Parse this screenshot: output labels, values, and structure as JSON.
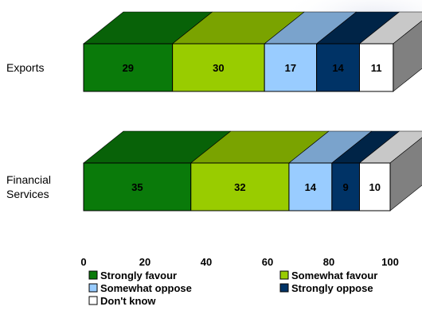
{
  "chart_data": {
    "type": "bar",
    "orientation": "horizontal",
    "stacked": true,
    "three_d": true,
    "categories": [
      "Exports",
      "Financial Services"
    ],
    "category_lines": [
      [
        "Exports"
      ],
      [
        "Financial",
        "Services"
      ]
    ],
    "series": [
      {
        "name": "Strongly favour",
        "values": [
          29,
          35
        ],
        "color": "#0a7a0a"
      },
      {
        "name": "Somewhat favour",
        "values": [
          30,
          32
        ],
        "color": "#99cc00"
      },
      {
        "name": "Somewhat oppose",
        "values": [
          17,
          14
        ],
        "color": "#99ccff"
      },
      {
        "name": "Strongly oppose",
        "values": [
          14,
          9
        ],
        "color": "#003366"
      },
      {
        "name": "Don't know",
        "values": [
          11,
          10
        ],
        "color": "#ffffff"
      }
    ],
    "x_ticks": [
      0,
      20,
      40,
      60,
      80,
      100
    ],
    "xlim": [
      0,
      100
    ],
    "grid": false,
    "legend_position": "bottom"
  }
}
